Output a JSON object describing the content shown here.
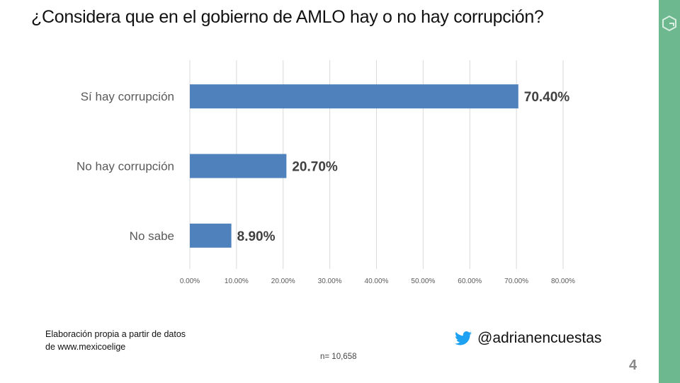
{
  "chart_data": {
    "type": "bar",
    "orientation": "horizontal",
    "title": "¿Considera que en el gobierno de AMLO hay o no hay corrupción?",
    "categories": [
      "Sí hay corrupción",
      "No hay corrupción",
      "No sabe"
    ],
    "values": [
      70.4,
      20.7,
      8.9
    ],
    "data_labels": [
      "70.40%",
      "20.70%",
      "8.90%"
    ],
    "xlim": [
      0,
      80
    ],
    "xticks": [
      0,
      10,
      20,
      30,
      40,
      50,
      60,
      70,
      80
    ],
    "xtick_labels": [
      "0.00%",
      "10.00%",
      "20.00%",
      "30.00%",
      "40.00%",
      "50.00%",
      "60.00%",
      "70.00%",
      "80.00%"
    ],
    "grid": true,
    "bar_color": "#4f81bd"
  },
  "footer": {
    "source_line1": "Elaboración propia a partir de datos",
    "source_line2": "de www.mexicoelige",
    "sample": "n= 10,658",
    "twitter_handle": "@adrianencuestas",
    "page_number": "4"
  },
  "colors": {
    "strip": "#6db88f",
    "twitter": "#1da1f2"
  }
}
